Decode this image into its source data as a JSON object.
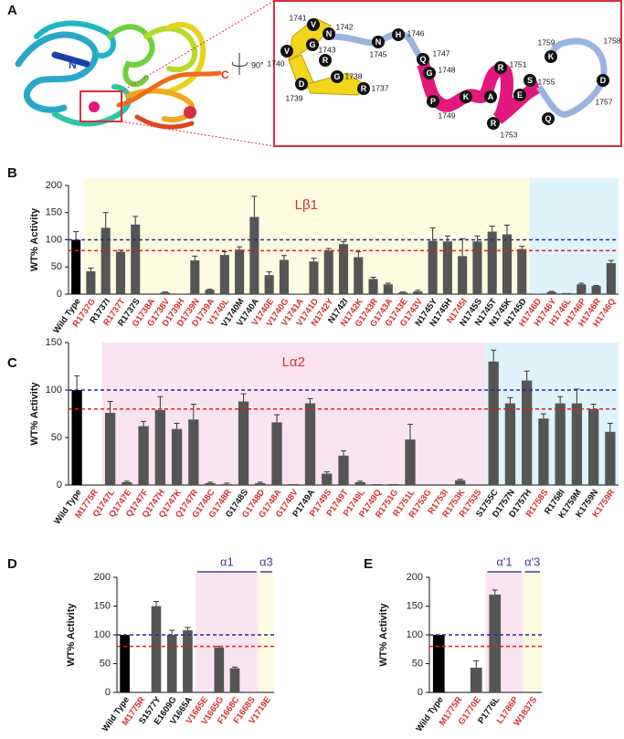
{
  "panel_a": {
    "letter": "A",
    "n_label": "N",
    "c_label": "C",
    "rotation": "90°",
    "residues": [
      {
        "letter": "V",
        "number": "1741"
      },
      {
        "letter": "N",
        "number": "1742"
      },
      {
        "letter": "G",
        "number": "1743"
      },
      {
        "letter": "V",
        "number": "1740"
      },
      {
        "letter": "R"
      },
      {
        "letter": "D",
        "number": "1739"
      },
      {
        "letter": "G",
        "number": "1738"
      },
      {
        "letter": "R",
        "number": "1737"
      },
      {
        "letter": "N",
        "number": "1745"
      },
      {
        "letter": "H",
        "number": "1746"
      },
      {
        "letter": "Q",
        "number": "1747"
      },
      {
        "letter": "G",
        "number": "1748"
      },
      {
        "letter": "P",
        "number": "1749"
      },
      {
        "letter": "K"
      },
      {
        "letter": "A"
      },
      {
        "letter": "R",
        "number": "1751"
      },
      {
        "letter": "R",
        "number": "1753"
      },
      {
        "letter": "E"
      },
      {
        "letter": "S",
        "number": "1755"
      },
      {
        "letter": "K",
        "number": "1759"
      },
      {
        "letter": "Q"
      },
      {
        "letter": "D",
        "number": "1757"
      },
      {
        "number": "1758"
      }
    ]
  },
  "chart_data": [
    {
      "type": "bar",
      "panel": "B",
      "ylabel": "WT% Activity",
      "ylim": [
        0,
        200
      ],
      "yticks": [
        0,
        50,
        100,
        150,
        200
      ],
      "categories": [
        "Wild Type",
        "R1737G",
        "R1737I",
        "R1737T",
        "R1737S",
        "G1738A",
        "G1738V",
        "D1739H",
        "D1739N",
        "D1739A",
        "V1740L",
        "V1740M",
        "V1740A",
        "V1740E",
        "V1740G",
        "V1741A",
        "V1741D",
        "N1742Y",
        "N1742I",
        "N1742K",
        "G1743R",
        "G1743A",
        "G1743E",
        "G1743V",
        "N1745Y",
        "N1745H",
        "N1745I",
        "N1745S",
        "N1745T",
        "N1745K",
        "N1745D",
        "H1746D",
        "H1746Y",
        "H1746L",
        "H1746P",
        "H1746R",
        "H1746Q"
      ],
      "values": [
        100,
        42,
        122,
        78,
        128,
        0,
        3,
        1,
        62,
        8,
        72,
        82,
        142,
        35,
        63,
        1,
        60,
        80,
        92,
        68,
        28,
        18,
        3,
        5,
        98,
        97,
        70,
        97,
        115,
        110,
        83,
        1,
        4,
        2,
        18,
        15,
        57
      ],
      "errors": [
        15,
        6,
        28,
        3,
        15,
        null,
        1,
        null,
        8,
        1,
        6,
        5,
        38,
        6,
        8,
        null,
        6,
        4,
        5,
        10,
        3,
        2,
        1,
        2,
        24,
        10,
        32,
        10,
        10,
        17,
        5,
        null,
        1,
        null,
        2,
        1,
        5
      ],
      "bar_colors": [
        "#000000",
        "#555555",
        "#555555",
        "#555555",
        "#555555",
        "#555555",
        "#555555",
        "#555555",
        "#555555",
        "#555555",
        "#555555",
        "#555555",
        "#555555",
        "#555555",
        "#555555",
        "#555555",
        "#555555",
        "#555555",
        "#555555",
        "#555555",
        "#555555",
        "#555555",
        "#555555",
        "#555555",
        "#555555",
        "#555555",
        "#555555",
        "#555555",
        "#555555",
        "#555555",
        "#555555",
        "#555555",
        "#555555",
        "#555555",
        "#555555",
        "#555555",
        "#555555"
      ],
      "label_colors": [
        "#111111",
        "#d0312d",
        "#111111",
        "#d0312d",
        "#111111",
        "#d0312d",
        "#d0312d",
        "#d0312d",
        "#d0312d",
        "#d0312d",
        "#d0312d",
        "#111111",
        "#111111",
        "#d0312d",
        "#d0312d",
        "#d0312d",
        "#d0312d",
        "#d0312d",
        "#111111",
        "#d0312d",
        "#d0312d",
        "#d0312d",
        "#d0312d",
        "#d0312d",
        "#111111",
        "#111111",
        "#d0312d",
        "#111111",
        "#111111",
        "#111111",
        "#111111",
        "#d0312d",
        "#d0312d",
        "#d0312d",
        "#d0312d",
        "#d0312d",
        "#d0312d"
      ],
      "reference_lines": [
        {
          "value": 100,
          "color": "#1f2f8f"
        },
        {
          "value": 80,
          "color": "#e02020"
        }
      ],
      "region_label_position": "inside",
      "regions": [
        {
          "label": "Lβ1",
          "from": "R1737G",
          "to": "N1745D",
          "color": "#fdfbe0",
          "label_color": "#d0312d"
        },
        {
          "from": "H1746D",
          "to": "H1746Q",
          "color": "#dff3fb"
        }
      ]
    },
    {
      "type": "bar",
      "panel": "C",
      "ylabel": "WT% Activity",
      "ylim": [
        0,
        150
      ],
      "yticks": [
        0,
        50,
        100,
        150
      ],
      "categories": [
        "Wild Type",
        "M1775R",
        "Q1747L",
        "Q1747E",
        "Q1747F",
        "Q1747H",
        "Q1747K",
        "Q1747R",
        "G1748C",
        "G1748R",
        "G1748S",
        "G1748D",
        "G1748A",
        "G1748V",
        "P1749A",
        "P1749S",
        "P1749T",
        "P1749L",
        "P1749Q",
        "R1751G",
        "R1751L",
        "R1753G",
        "R1753I",
        "R1753K",
        "R1753S",
        "S1755C",
        "D1757N",
        "D1757H",
        "R1758S",
        "R1758I",
        "K1759M",
        "K1759N",
        "K1759R"
      ],
      "values": [
        100,
        0,
        76,
        3,
        62,
        79,
        59,
        69,
        2,
        1,
        88,
        2,
        66,
        1,
        86,
        12,
        31,
        3,
        1,
        1,
        48,
        0,
        0,
        5,
        0,
        130,
        86,
        110,
        70,
        86,
        86,
        80,
        56
      ],
      "errors": [
        15,
        null,
        12,
        1,
        5,
        14,
        6,
        16,
        1,
        1,
        8,
        1,
        8,
        null,
        5,
        2,
        5,
        1,
        null,
        null,
        16,
        null,
        null,
        1,
        null,
        12,
        6,
        10,
        5,
        7,
        15,
        5,
        9
      ],
      "bar_colors": [
        "#000000",
        "#555555",
        "#555555",
        "#555555",
        "#555555",
        "#555555",
        "#555555",
        "#555555",
        "#555555",
        "#555555",
        "#555555",
        "#555555",
        "#555555",
        "#555555",
        "#555555",
        "#555555",
        "#555555",
        "#555555",
        "#555555",
        "#555555",
        "#555555",
        "#555555",
        "#555555",
        "#555555",
        "#555555",
        "#555555",
        "#555555",
        "#555555",
        "#555555",
        "#555555",
        "#555555",
        "#555555",
        "#555555"
      ],
      "label_colors": [
        "#111111",
        "#d0312d",
        "#d0312d",
        "#d0312d",
        "#d0312d",
        "#d0312d",
        "#d0312d",
        "#d0312d",
        "#d0312d",
        "#d0312d",
        "#111111",
        "#d0312d",
        "#d0312d",
        "#d0312d",
        "#111111",
        "#d0312d",
        "#d0312d",
        "#d0312d",
        "#d0312d",
        "#d0312d",
        "#d0312d",
        "#d0312d",
        "#d0312d",
        "#d0312d",
        "#d0312d",
        "#111111",
        "#111111",
        "#111111",
        "#d0312d",
        "#111111",
        "#111111",
        "#111111",
        "#d0312d"
      ],
      "reference_lines": [
        {
          "value": 100,
          "color": "#1f2f8f"
        },
        {
          "value": 80,
          "color": "#e02020"
        }
      ],
      "region_label_position": "inside",
      "regions": [
        {
          "label": "Lα2",
          "from": "Q1747L",
          "to": "R1753S",
          "color": "#fbe4f1",
          "label_color": "#d0312d"
        },
        {
          "from": "S1755C",
          "to": "K1759R",
          "color": "#dff3fb"
        }
      ]
    },
    {
      "type": "bar",
      "panel": "D",
      "ylabel": "WT% Activity",
      "ylim": [
        0,
        200
      ],
      "yticks": [
        0,
        50,
        100,
        150,
        200
      ],
      "categories": [
        "Wild Type",
        "M1775R",
        "S1577Y",
        "E1609G",
        "V1665A",
        "V1665E",
        "V1665G",
        "F1668C",
        "F1668S",
        "V1719E"
      ],
      "values": [
        100,
        0,
        150,
        100,
        108,
        0,
        78,
        42,
        1,
        0
      ],
      "errors": [
        null,
        null,
        8,
        8,
        5,
        null,
        2,
        2,
        null,
        null
      ],
      "bar_colors": [
        "#000000",
        "#555555",
        "#555555",
        "#555555",
        "#555555",
        "#555555",
        "#555555",
        "#555555",
        "#555555",
        "#555555"
      ],
      "label_colors": [
        "#111111",
        "#d0312d",
        "#111111",
        "#111111",
        "#111111",
        "#d0312d",
        "#d0312d",
        "#d0312d",
        "#d0312d",
        "#d0312d"
      ],
      "reference_lines": [
        {
          "value": 100,
          "color": "#1f2f8f"
        },
        {
          "value": 80,
          "color": "#e02020"
        }
      ],
      "region_label_position": "above",
      "regions": [
        {
          "label": "α1",
          "from": "V1665E",
          "to": "F1668S",
          "color": "#fbe4f1",
          "label_color": "#4b3a9c"
        },
        {
          "label": "α3",
          "from": "V1719E",
          "to": "V1719E",
          "color": "#fdfbe0",
          "label_color": "#4b3a9c"
        }
      ]
    },
    {
      "type": "bar",
      "panel": "E",
      "ylabel": "WT% Activity",
      "ylim": [
        0,
        200
      ],
      "yticks": [
        0,
        50,
        100,
        150,
        200
      ],
      "categories": [
        "Wild Type",
        "M1775R",
        "G1770E",
        "P1776L",
        "L1786P",
        "W1837S"
      ],
      "values": [
        100,
        0,
        43,
        170,
        0,
        0
      ],
      "errors": [
        null,
        null,
        12,
        8,
        null,
        null
      ],
      "bar_colors": [
        "#000000",
        "#555555",
        "#555555",
        "#555555",
        "#555555",
        "#555555"
      ],
      "label_colors": [
        "#111111",
        "#d0312d",
        "#d0312d",
        "#111111",
        "#d0312d",
        "#d0312d"
      ],
      "reference_lines": [
        {
          "value": 100,
          "color": "#1f2f8f"
        },
        {
          "value": 80,
          "color": "#e02020"
        }
      ],
      "region_label_position": "above",
      "regions": [
        {
          "label": "α'1",
          "from": "P1776L",
          "to": "L1786P",
          "color": "#fbe4f1",
          "label_color": "#4b3a9c"
        },
        {
          "label": "α'3",
          "from": "W1837S",
          "to": "W1837S",
          "color": "#fdfbe0",
          "label_color": "#4b3a9c"
        }
      ]
    }
  ]
}
